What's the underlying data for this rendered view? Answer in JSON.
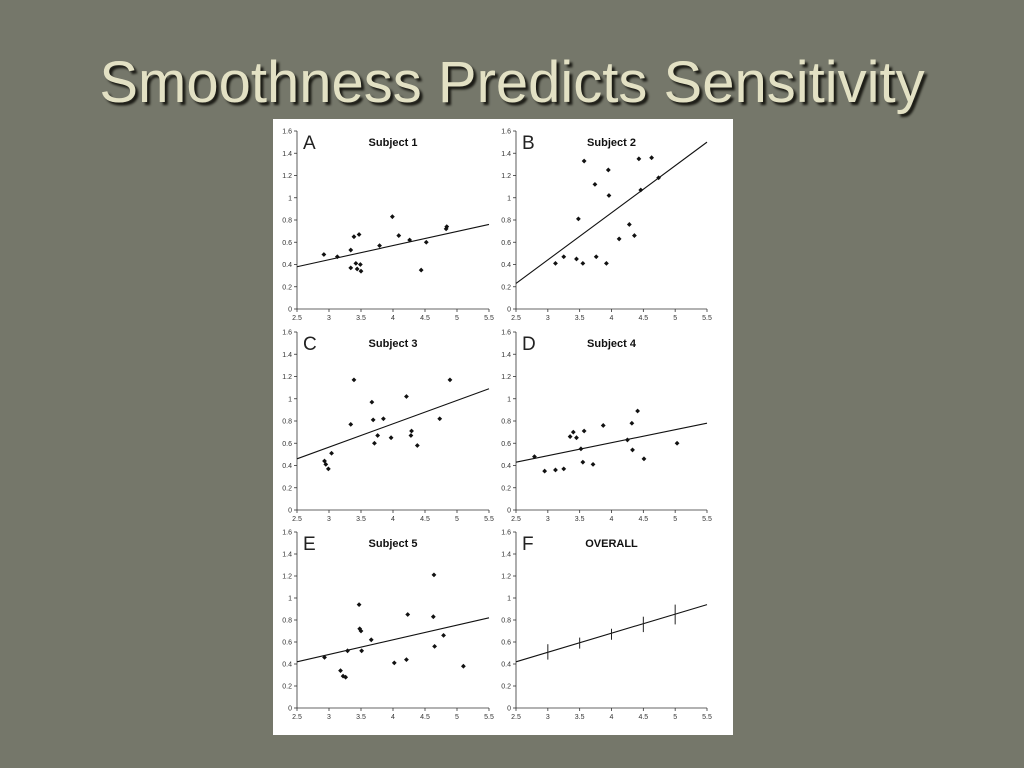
{
  "slide": {
    "title": "Smoothness Predicts Sensitivity"
  },
  "axes": {
    "xlim": [
      2.5,
      5.5
    ],
    "ylim": [
      0,
      1.6
    ],
    "xticks": [
      "2.5",
      "3",
      "3.5",
      "4",
      "4.5",
      "5",
      "5.5"
    ],
    "yticks": [
      "0",
      "0.2",
      "0.4",
      "0.6",
      "0.8",
      "1",
      "1.2",
      "1.4",
      "1.6"
    ]
  },
  "chart_data": [
    {
      "type": "scatter",
      "letter": "A",
      "title": "Subject 1",
      "xlim": [
        2.5,
        5.5
      ],
      "ylim": [
        0,
        1.6
      ],
      "points": [
        [
          2.92,
          0.49
        ],
        [
          3.13,
          0.47
        ],
        [
          3.34,
          0.53
        ],
        [
          3.34,
          0.37
        ],
        [
          3.39,
          0.65
        ],
        [
          3.42,
          0.41
        ],
        [
          3.44,
          0.36
        ],
        [
          3.47,
          0.67
        ],
        [
          3.49,
          0.4
        ],
        [
          3.5,
          0.34
        ],
        [
          3.79,
          0.57
        ],
        [
          3.99,
          0.83
        ],
        [
          4.09,
          0.66
        ],
        [
          4.26,
          0.62
        ],
        [
          4.44,
          0.35
        ],
        [
          4.52,
          0.6
        ],
        [
          4.83,
          0.72
        ],
        [
          4.84,
          0.74
        ]
      ],
      "fit": [
        [
          2.5,
          0.38
        ],
        [
          5.5,
          0.76
        ]
      ]
    },
    {
      "type": "scatter",
      "letter": "B",
      "title": "Subject 2",
      "xlim": [
        2.5,
        5.5
      ],
      "ylim": [
        0,
        1.6
      ],
      "points": [
        [
          3.12,
          0.41
        ],
        [
          3.25,
          0.47
        ],
        [
          3.45,
          0.45
        ],
        [
          3.48,
          0.81
        ],
        [
          3.55,
          0.41
        ],
        [
          3.57,
          1.33
        ],
        [
          3.74,
          1.12
        ],
        [
          3.76,
          0.47
        ],
        [
          3.92,
          0.41
        ],
        [
          3.95,
          1.25
        ],
        [
          3.96,
          1.02
        ],
        [
          4.12,
          0.63
        ],
        [
          4.28,
          0.76
        ],
        [
          4.36,
          0.66
        ],
        [
          4.43,
          1.35
        ],
        [
          4.46,
          1.07
        ],
        [
          4.63,
          1.36
        ],
        [
          4.74,
          1.18
        ]
      ],
      "fit": [
        [
          2.5,
          0.23
        ],
        [
          5.5,
          1.5
        ]
      ]
    },
    {
      "type": "scatter",
      "letter": "C",
      "title": "Subject 3",
      "xlim": [
        2.5,
        5.5
      ],
      "ylim": [
        0,
        1.6
      ],
      "points": [
        [
          2.93,
          0.44
        ],
        [
          2.95,
          0.41
        ],
        [
          2.99,
          0.37
        ],
        [
          3.04,
          0.51
        ],
        [
          3.34,
          0.77
        ],
        [
          3.39,
          1.17
        ],
        [
          3.67,
          0.97
        ],
        [
          3.69,
          0.81
        ],
        [
          3.71,
          0.6
        ],
        [
          3.76,
          0.67
        ],
        [
          3.85,
          0.82
        ],
        [
          3.97,
          0.65
        ],
        [
          4.21,
          1.02
        ],
        [
          4.28,
          0.67
        ],
        [
          4.29,
          0.71
        ],
        [
          4.38,
          0.58
        ],
        [
          4.73,
          0.82
        ],
        [
          4.89,
          1.17
        ]
      ],
      "fit": [
        [
          2.5,
          0.46
        ],
        [
          5.5,
          1.09
        ]
      ]
    },
    {
      "type": "scatter",
      "letter": "D",
      "title": "Subject 4",
      "xlim": [
        2.5,
        5.5
      ],
      "ylim": [
        0,
        1.6
      ],
      "points": [
        [
          2.79,
          0.48
        ],
        [
          2.95,
          0.35
        ],
        [
          3.12,
          0.36
        ],
        [
          3.25,
          0.37
        ],
        [
          3.35,
          0.66
        ],
        [
          3.4,
          0.7
        ],
        [
          3.45,
          0.65
        ],
        [
          3.52,
          0.55
        ],
        [
          3.55,
          0.43
        ],
        [
          3.57,
          0.71
        ],
        [
          3.71,
          0.41
        ],
        [
          3.87,
          0.76
        ],
        [
          4.25,
          0.63
        ],
        [
          4.32,
          0.78
        ],
        [
          4.33,
          0.54
        ],
        [
          4.41,
          0.89
        ],
        [
          4.51,
          0.46
        ],
        [
          5.03,
          0.6
        ]
      ],
      "fit": [
        [
          2.5,
          0.43
        ],
        [
          5.5,
          0.78
        ]
      ]
    },
    {
      "type": "scatter",
      "letter": "E",
      "title": "Subject 5",
      "xlim": [
        2.5,
        5.5
      ],
      "ylim": [
        0,
        1.6
      ],
      "points": [
        [
          2.93,
          0.46
        ],
        [
          3.18,
          0.34
        ],
        [
          3.22,
          0.29
        ],
        [
          3.26,
          0.28
        ],
        [
          3.29,
          0.52
        ],
        [
          3.47,
          0.94
        ],
        [
          3.48,
          0.72
        ],
        [
          3.5,
          0.7
        ],
        [
          3.51,
          0.52
        ],
        [
          3.66,
          0.62
        ],
        [
          4.02,
          0.41
        ],
        [
          4.21,
          0.44
        ],
        [
          4.23,
          0.85
        ],
        [
          4.63,
          0.83
        ],
        [
          4.64,
          1.21
        ],
        [
          4.65,
          0.56
        ],
        [
          4.79,
          0.66
        ],
        [
          5.1,
          0.38
        ]
      ],
      "fit": [
        [
          2.5,
          0.42
        ],
        [
          5.5,
          0.82
        ]
      ]
    },
    {
      "type": "line",
      "letter": "F",
      "title": "OVERALL",
      "xlim": [
        2.5,
        5.5
      ],
      "ylim": [
        0,
        1.6
      ],
      "fit": [
        [
          2.5,
          0.42
        ],
        [
          5.5,
          0.94
        ]
      ],
      "errorbars": [
        {
          "x": 3.0,
          "y": 0.51,
          "low": 0.44,
          "high": 0.58
        },
        {
          "x": 3.5,
          "y": 0.59,
          "low": 0.54,
          "high": 0.64
        },
        {
          "x": 4.0,
          "y": 0.67,
          "low": 0.62,
          "high": 0.72
        },
        {
          "x": 4.5,
          "y": 0.76,
          "low": 0.69,
          "high": 0.83
        },
        {
          "x": 5.0,
          "y": 0.85,
          "low": 0.76,
          "high": 0.94
        }
      ]
    }
  ]
}
